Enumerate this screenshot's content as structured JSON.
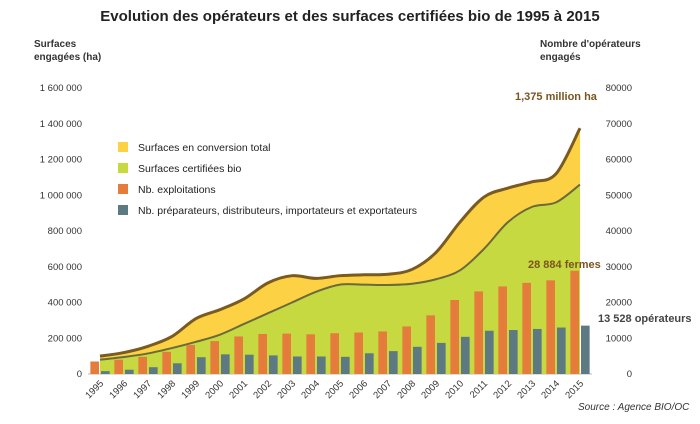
{
  "chart_data": {
    "type": "bar",
    "title": "Evolution des opérateurs et des surfaces certifiées bio de 1995 à 2015",
    "ylabel_left_lines": [
      "Surfaces",
      "engagées (ha)"
    ],
    "ylabel_right_lines": [
      "Nombre d'opérateurs",
      "engagés"
    ],
    "source": "Source : Agence BIO/OC",
    "categories": [
      "1995",
      "1996",
      "1997",
      "1998",
      "1999",
      "2000",
      "2001",
      "2002",
      "2003",
      "2004",
      "2005",
      "2006",
      "2007",
      "2008",
      "2009",
      "2010",
      "2011",
      "2012",
      "2013",
      "2014",
      "2015"
    ],
    "ylim_left": [
      0,
      1600000
    ],
    "ylim_right": [
      0,
      80000
    ],
    "y_ticks_left": [
      "0",
      "200 000",
      "400 000",
      "600 000",
      "800 000",
      "1 000 000",
      "1 200 000",
      "1 400 000",
      "1 600 000"
    ],
    "y_ticks_right": [
      "0",
      "10000",
      "20000",
      "30000",
      "40000",
      "50000",
      "60000",
      "70000",
      "80000"
    ],
    "series": [
      {
        "name": "Surfaces en conversion total",
        "type": "area",
        "axis": "left",
        "color": "#fcd144",
        "values": [
          100000,
          120000,
          155000,
          210000,
          310000,
          360000,
          420000,
          510000,
          550000,
          535000,
          550000,
          555000,
          558000,
          585000,
          680000,
          850000,
          990000,
          1040000,
          1075000,
          1120000,
          1375000
        ]
      },
      {
        "name": "Surfaces certifiées bio",
        "type": "area",
        "axis": "left",
        "color": "#c7d940",
        "values": [
          80000,
          95000,
          115000,
          145000,
          180000,
          220000,
          280000,
          340000,
          400000,
          460000,
          500000,
          500000,
          498000,
          505000,
          530000,
          580000,
          700000,
          850000,
          935000,
          960000,
          1060000
        ]
      },
      {
        "name": "Nb. exploitations",
        "type": "bar",
        "axis": "right",
        "color": "#e67c3b",
        "values": [
          3500,
          4000,
          4800,
          6200,
          8100,
          9200,
          10500,
          11200,
          11300,
          11100,
          11400,
          11600,
          11900,
          13300,
          16400,
          20700,
          23100,
          24500,
          25500,
          26200,
          28884
        ]
      },
      {
        "name": "Nb. préparateurs, distributeurs, importateurs et exportateurs",
        "type": "bar",
        "axis": "right",
        "color": "#5d7a82",
        "values": [
          800,
          1200,
          1900,
          3000,
          4700,
          5500,
          5400,
          5200,
          4900,
          4900,
          4800,
          5800,
          6400,
          7600,
          8700,
          10400,
          12100,
          12300,
          12600,
          13000,
          13528
        ]
      }
    ],
    "annotations": {
      "total_label": "1,375 million ha",
      "farms_label": "28 884 fermes",
      "operators_label": "13 528 opérateurs"
    },
    "legend_position": "top-left"
  }
}
